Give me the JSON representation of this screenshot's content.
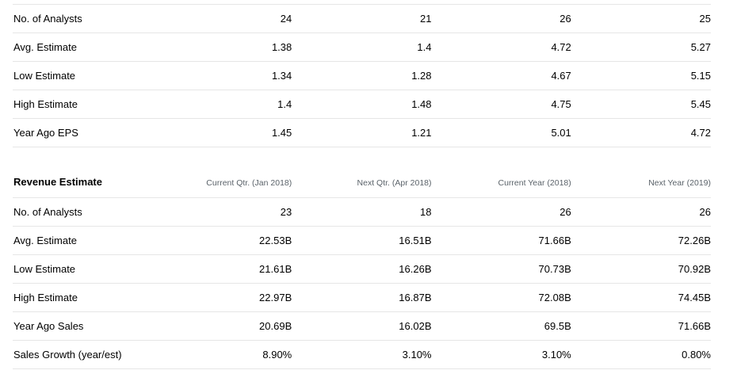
{
  "eps": {
    "rows": [
      {
        "label": "No. of Analysts",
        "values": [
          "24",
          "21",
          "26",
          "25"
        ]
      },
      {
        "label": "Avg. Estimate",
        "values": [
          "1.38",
          "1.4",
          "4.72",
          "5.27"
        ]
      },
      {
        "label": "Low Estimate",
        "values": [
          "1.34",
          "1.28",
          "4.67",
          "5.15"
        ]
      },
      {
        "label": "High Estimate",
        "values": [
          "1.4",
          "1.48",
          "4.75",
          "5.45"
        ]
      },
      {
        "label": "Year Ago EPS",
        "values": [
          "1.45",
          "1.21",
          "5.01",
          "4.72"
        ]
      }
    ]
  },
  "revenue": {
    "title": "Revenue Estimate",
    "columns": [
      "Current Qtr. (Jan 2018)",
      "Next Qtr. (Apr 2018)",
      "Current Year (2018)",
      "Next Year (2019)"
    ],
    "rows": [
      {
        "label": "No. of Analysts",
        "values": [
          "23",
          "18",
          "26",
          "26"
        ]
      },
      {
        "label": "Avg. Estimate",
        "values": [
          "22.53B",
          "16.51B",
          "71.66B",
          "72.26B"
        ]
      },
      {
        "label": "Low Estimate",
        "values": [
          "21.61B",
          "16.26B",
          "70.73B",
          "70.92B"
        ]
      },
      {
        "label": "High Estimate",
        "values": [
          "22.97B",
          "16.87B",
          "72.08B",
          "74.45B"
        ]
      },
      {
        "label": "Year Ago Sales",
        "values": [
          "20.69B",
          "16.02B",
          "69.5B",
          "71.66B"
        ]
      },
      {
        "label": "Sales Growth (year/est)",
        "values": [
          "8.90%",
          "3.10%",
          "3.10%",
          "0.80%"
        ]
      }
    ]
  }
}
